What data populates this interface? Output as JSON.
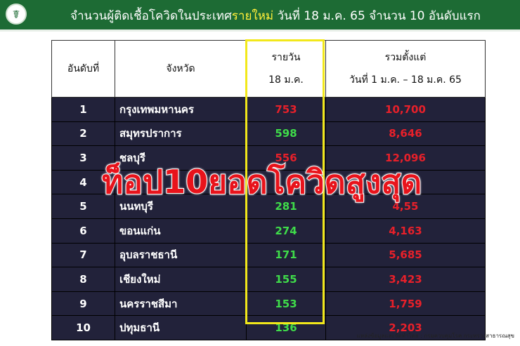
{
  "banner": {
    "title_pre": "จำนวนผู้ติดเชื้อโควิดในประเทศ",
    "title_highlight": "รายใหม่",
    "title_post": " วันที่ 18 ม.ค. 65 จำนวน 10 อันดับแรก"
  },
  "table": {
    "headers": {
      "rank": "อันดับที่",
      "province": "จังหวัด",
      "daily_1": "รายวัน",
      "daily_2": "18 ม.ค.",
      "total_1": "รวมตั้งแต่",
      "total_2": "วันที่ 1 ม.ค. – 18 ม.ค. 65"
    },
    "rows": [
      {
        "rank": "1",
        "province": "กรุงเทพมหานคร",
        "daily": "753",
        "total": "10,700",
        "daily_color": "red"
      },
      {
        "rank": "2",
        "province": "สมุทรปราการ",
        "daily": "598",
        "total": "8,646",
        "daily_color": "green"
      },
      {
        "rank": "3",
        "province": "ชลบุรี",
        "daily": "556",
        "total": "12,096",
        "daily_color": "red"
      },
      {
        "rank": "4",
        "province": "",
        "daily": "",
        "total": "",
        "daily_color": "green"
      },
      {
        "rank": "5",
        "province": "นนทบุรี",
        "daily": "281",
        "total": "4,55",
        "daily_color": "green"
      },
      {
        "rank": "6",
        "province": "ขอนแก่น",
        "daily": "274",
        "total": "4,163",
        "daily_color": "green"
      },
      {
        "rank": "7",
        "province": "อุบลราชธานี",
        "daily": "171",
        "total": "5,685",
        "daily_color": "green"
      },
      {
        "rank": "8",
        "province": "เชียงใหม่",
        "daily": "155",
        "total": "3,423",
        "daily_color": "green"
      },
      {
        "rank": "9",
        "province": "นครราชสีมา",
        "daily": "153",
        "total": "1,759",
        "daily_color": "green"
      },
      {
        "rank": "10",
        "province": "ปทุมธานี",
        "daily": "136",
        "total": "2,203",
        "daily_color": "green"
      }
    ]
  },
  "overlay": "ท็อป10ยอดโควิดสูงสุด",
  "source": "แหล่งข้อมูลและจัดทำโดย : กรมควบคุมโรค กระทรวงสาธารณสุข",
  "colors": {
    "banner": "#1d6b34",
    "highlight": "#ffef3a",
    "row_bg": "#22223a",
    "red": "#e8202a",
    "green": "#3fdc4a",
    "box": "#f2e81a"
  }
}
